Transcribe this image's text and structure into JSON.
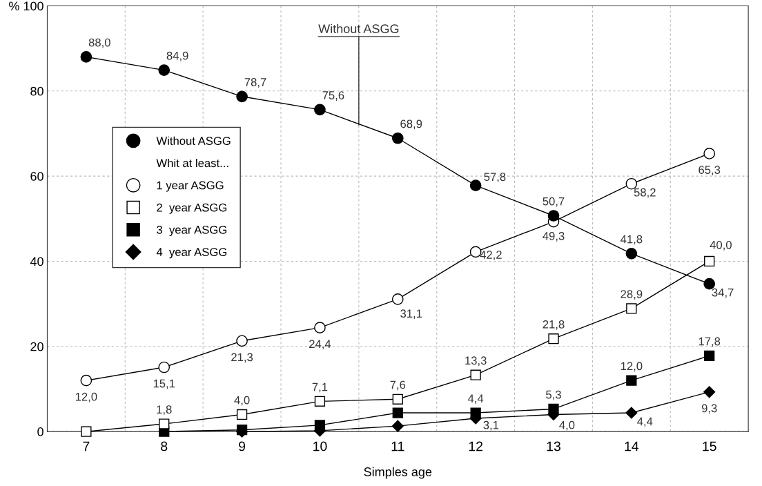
{
  "chart_data": {
    "type": "line",
    "xlabel": "Simples age",
    "categories": [
      "7",
      "8",
      "9",
      "10",
      "11",
      "12",
      "13",
      "14",
      "15"
    ],
    "ylim": [
      0,
      100
    ],
    "yticks": [
      0,
      20,
      40,
      60,
      80,
      {
        "value": 100,
        "label": "% 100"
      }
    ],
    "grid": true,
    "legend": "left",
    "legend_title": "Whit at least...",
    "line_style": "solid",
    "annotations": [
      {
        "text": "Without ASGG",
        "y": 72
      }
    ],
    "series": [
      {
        "name": "Without ASGG",
        "color": "#000000",
        "marker": "circle",
        "values": [
          88.0,
          84.9,
          78.7,
          75.6,
          68.9,
          57.8,
          50.7,
          41.8,
          34.7
        ],
        "value_labels": [
          "88,0",
          "84,9",
          "78,7",
          "75,6",
          "68,9",
          "57,8",
          "50,7",
          "41,8",
          "34,7"
        ]
      },
      {
        "name": "1 year ASGG",
        "color": "#000000",
        "marker": "circle",
        "values": [
          12.0,
          15.1,
          21.3,
          24.4,
          31.1,
          42.2,
          49.3,
          58.2,
          65.3
        ],
        "value_labels": [
          "12,0",
          "15,1",
          "21,3",
          "24,4",
          "31,1",
          "42,2",
          "49,3",
          "58,2",
          "65,3"
        ]
      },
      {
        "name": "2  year ASGG",
        "color": "#000000",
        "marker": "square",
        "values": [
          0,
          1.8,
          4.0,
          7.1,
          7.6,
          13.3,
          21.8,
          28.9,
          40.0
        ],
        "value_labels": [
          null,
          "1,8",
          "4,0",
          "7,1",
          "7,6",
          "13,3",
          "21,8",
          "28,9",
          "40,0"
        ]
      },
      {
        "name": "3  year ASGG",
        "color": "#000000",
        "marker": "square",
        "values": [
          null,
          0,
          0.4,
          1.5,
          4.4,
          4.4,
          5.3,
          12.0,
          17.8
        ],
        "value_labels": [
          null,
          null,
          null,
          null,
          null,
          "4,4",
          "5,3",
          "12,0",
          "17,8"
        ]
      },
      {
        "name": "4  year ASGG",
        "color": "#000000",
        "marker": "diamond",
        "values": [
          null,
          null,
          0,
          0.2,
          1.3,
          3.1,
          4.0,
          4.4,
          9.3
        ],
        "value_labels": [
          null,
          null,
          null,
          null,
          null,
          "3,1",
          "4,0",
          "4,4",
          "9,3"
        ]
      }
    ]
  }
}
